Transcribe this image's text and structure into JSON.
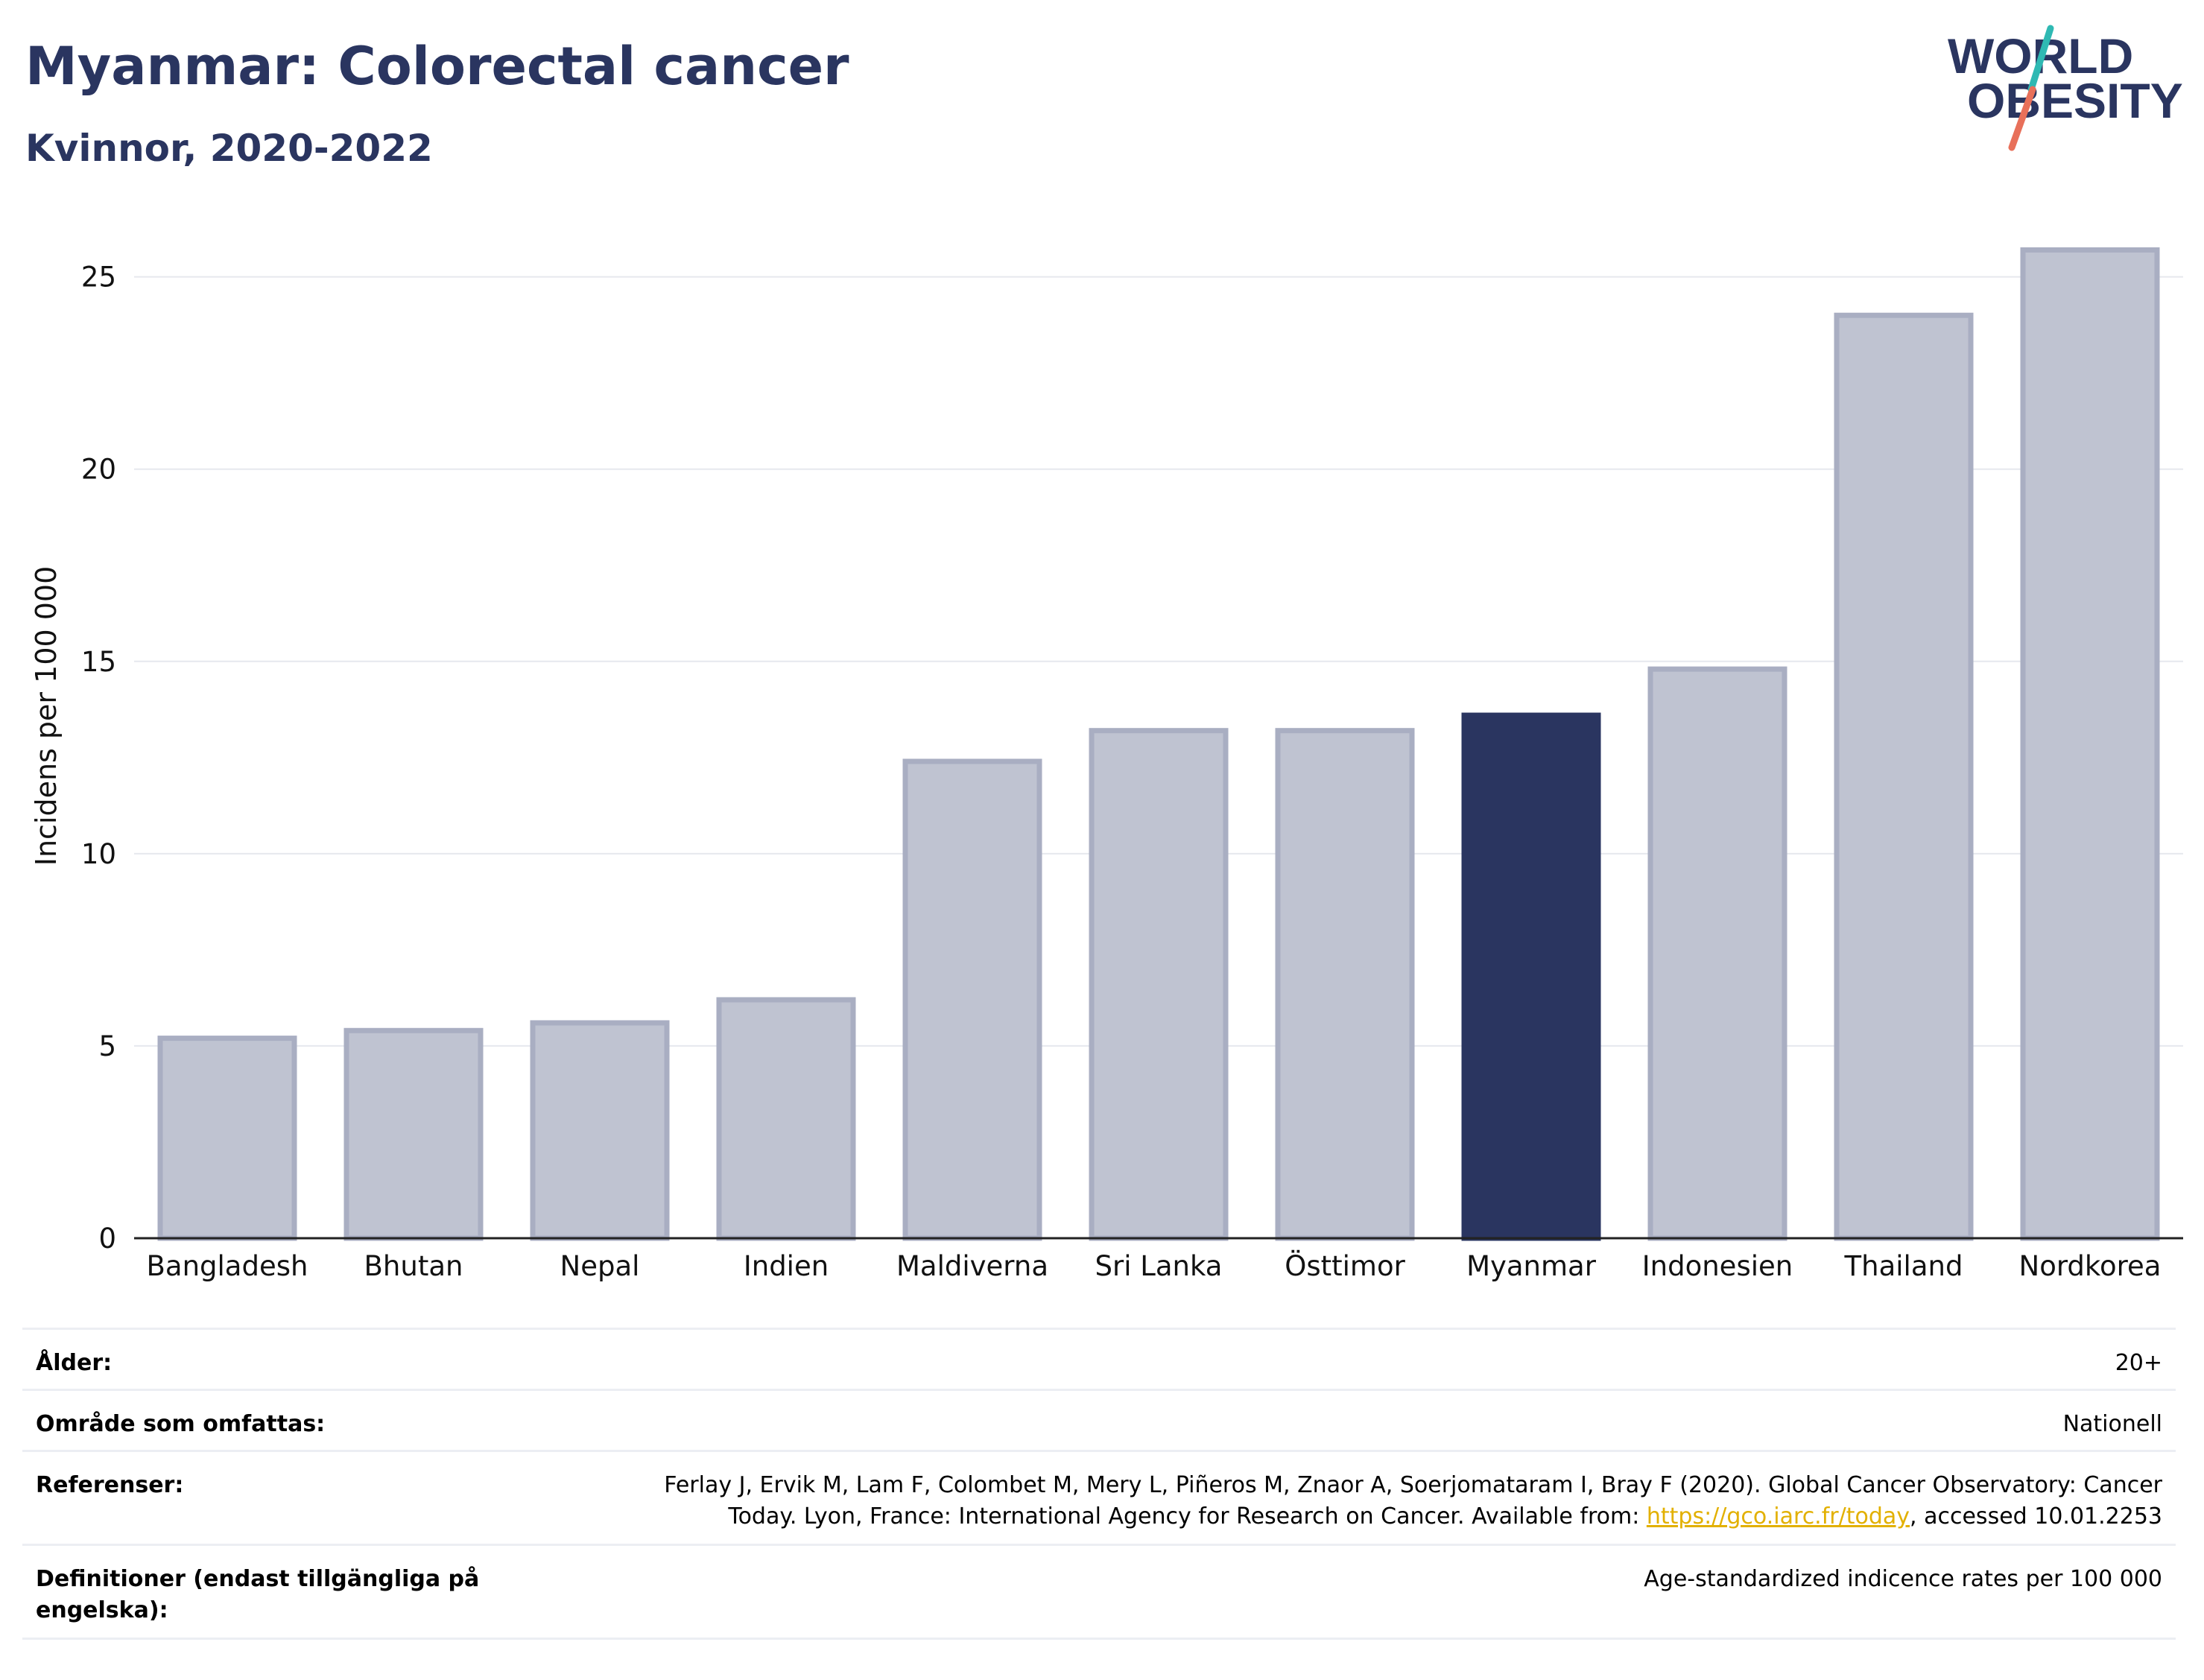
{
  "header": {
    "title": "Myanmar: Colorectal cancer",
    "subtitle": "Kvinnor, 2020-2022"
  },
  "logo": {
    "line1": "WORLD",
    "line2": "OBESITY",
    "accent_teal": "#2fb9b3",
    "accent_coral": "#e8705a",
    "text_color": "#2a3560"
  },
  "chart_data": {
    "type": "bar",
    "title": "Myanmar: Colorectal cancer",
    "subtitle": "Kvinnor, 2020-2022",
    "xlabel": "",
    "ylabel": "Incidens per 100 000",
    "categories": [
      "Bangladesh",
      "Bhutan",
      "Nepal",
      "Indien",
      "Maldiverna",
      "Sri Lanka",
      "Östtimor",
      "Myanmar",
      "Indonesien",
      "Thailand",
      "Nordkorea"
    ],
    "values": [
      5.2,
      5.4,
      5.6,
      6.2,
      12.4,
      13.2,
      13.2,
      13.6,
      14.8,
      24.0,
      25.7
    ],
    "highlight": "Myanmar",
    "ylim": [
      0,
      26
    ],
    "yticks": [
      0,
      5,
      10,
      15,
      20,
      25
    ],
    "grid": true,
    "colors": {
      "bar": "#bfc3d1",
      "bar_border": "#a9aec2",
      "highlight": "#2a3560",
      "grid": "#e6e8ee",
      "axis": "#222222"
    }
  },
  "info": {
    "rows": [
      {
        "label": "Ålder:",
        "value": "20+"
      },
      {
        "label": "Område som omfattas:",
        "value": "Nationell"
      },
      {
        "label": "Referenser:",
        "value_before": "Ferlay J, Ervik M, Lam F, Colombet M, Mery L, Piñeros M, Znaor A, Soerjomataram I, Bray F (2020). Global Cancer Observatory: Cancer Today. Lyon, France: International Agency for Research on Cancer. Available from: ",
        "link": "https://gco.iarc.fr/today",
        "value_after": ", accessed 10.01.2253"
      },
      {
        "label": "Definitioner (endast tillgängliga på engelska):",
        "value": "Age-standardized indicence rates per 100 000"
      }
    ]
  }
}
